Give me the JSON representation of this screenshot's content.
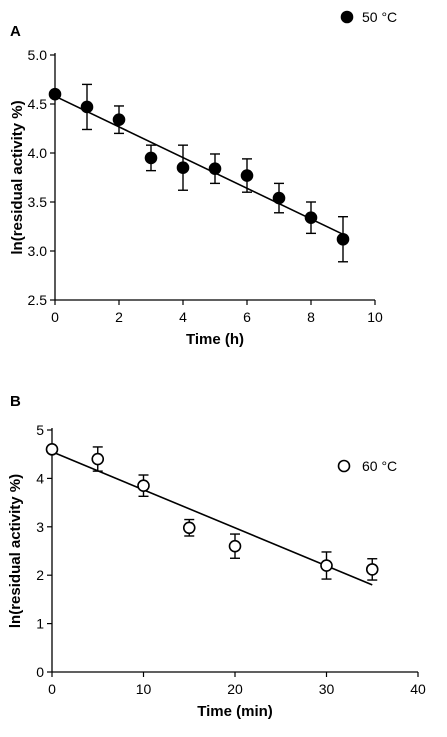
{
  "chart_data": [
    {
      "panel": "A",
      "type": "scatter",
      "xlabel": "Time (h)",
      "ylabel": "ln(residual activity %)",
      "xlim": [
        0,
        10
      ],
      "ylim": [
        2.5,
        5.0
      ],
      "xticks": [
        "0",
        "2",
        "4",
        "6",
        "8",
        "10"
      ],
      "yticks": [
        "2.5",
        "3.0",
        "3.5",
        "4.0",
        "4.5",
        "5.0"
      ],
      "grid": false,
      "legend_position": "top-right",
      "series": [
        {
          "name": "50 °C",
          "marker": "filled-circle",
          "x": [
            0,
            1,
            2,
            3,
            4,
            5,
            6,
            7,
            8,
            9
          ],
          "y": [
            4.6,
            4.47,
            4.34,
            3.95,
            3.85,
            3.84,
            3.77,
            3.54,
            3.34,
            3.12
          ],
          "error": [
            0.02,
            0.23,
            0.14,
            0.13,
            0.23,
            0.15,
            0.17,
            0.15,
            0.16,
            0.23
          ]
        }
      ],
      "fit_line": {
        "x": [
          0,
          9
        ],
        "y": [
          4.58,
          3.17
        ]
      }
    },
    {
      "panel": "B",
      "type": "scatter",
      "xlabel": "Time (min)",
      "ylabel": "ln(residual activity %)",
      "xlim": [
        0,
        40
      ],
      "ylim": [
        0,
        5
      ],
      "xticks": [
        "0",
        "10",
        "20",
        "30",
        "40"
      ],
      "yticks": [
        "0",
        "1",
        "2",
        "3",
        "4",
        "5"
      ],
      "grid": false,
      "legend_position": "top-right",
      "series": [
        {
          "name": "60 °C",
          "marker": "open-circle",
          "x": [
            0,
            5,
            10,
            15,
            20,
            30,
            35
          ],
          "y": [
            4.6,
            4.4,
            3.85,
            2.98,
            2.6,
            2.2,
            2.12
          ],
          "error": [
            0.05,
            0.25,
            0.22,
            0.17,
            0.25,
            0.28,
            0.22
          ]
        }
      ],
      "fit_line": {
        "x": [
          0,
          35
        ],
        "y": [
          4.55,
          1.8
        ]
      }
    }
  ]
}
